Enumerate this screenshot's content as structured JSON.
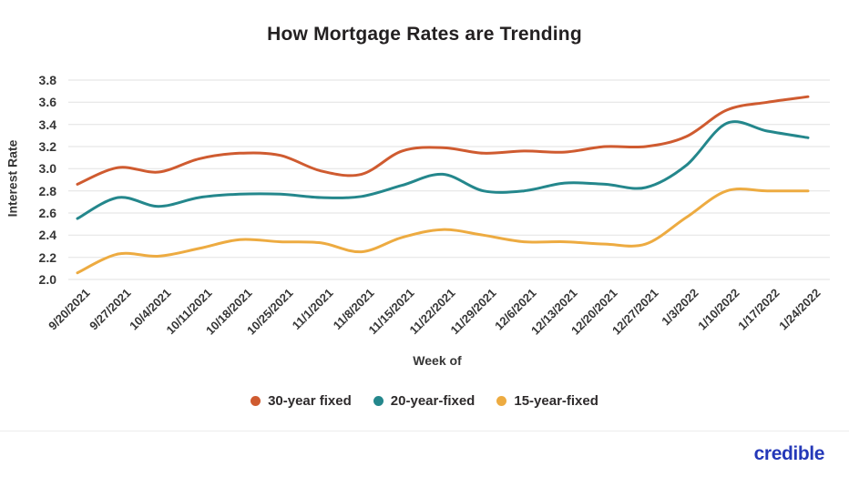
{
  "title": "How Mortgage Rates are Trending",
  "branding": {
    "logo_text": "credible",
    "logo_color": "#2438b8"
  },
  "chart_data": {
    "type": "line",
    "title": "How Mortgage Rates are Trending",
    "xlabel": "Week of",
    "ylabel": "Interest Rate",
    "ylim": [
      2.0,
      3.8
    ],
    "yticks": [
      3.8,
      3.6,
      3.4,
      3.2,
      3.0,
      2.8,
      2.6,
      2.4,
      2.2,
      2.0
    ],
    "grid": true,
    "gridline_color": "#e2e2e2",
    "legend_position": "bottom",
    "x_tick_rotation": -45,
    "categories": [
      "9/20/2021",
      "9/27/2021",
      "10/4/2021",
      "10/11/2021",
      "10/18/2021",
      "10/25/2021",
      "11/1/2021",
      "11/8/2021",
      "11/15/2021",
      "11/22/2021",
      "11/29/2021",
      "12/6/2021",
      "12/13/2021",
      "12/20/2021",
      "12/27/2021",
      "1/3/2022",
      "1/10/2022",
      "1/17/2022",
      "1/24/2022"
    ],
    "series": [
      {
        "name": "30-year fixed",
        "color": "#cf5b30",
        "values": [
          2.86,
          3.01,
          2.97,
          3.09,
          3.14,
          3.12,
          2.98,
          2.95,
          3.16,
          3.19,
          3.14,
          3.16,
          3.15,
          3.2,
          3.2,
          3.29,
          3.53,
          3.6,
          3.65
        ]
      },
      {
        "name": "20-year-fixed",
        "color": "#24878c",
        "values": [
          2.55,
          2.74,
          2.66,
          2.74,
          2.77,
          2.77,
          2.74,
          2.75,
          2.85,
          2.95,
          2.8,
          2.8,
          2.87,
          2.86,
          2.83,
          3.03,
          3.41,
          3.34,
          3.28
        ]
      },
      {
        "name": "15-year-fixed",
        "color": "#edab41",
        "values": [
          2.06,
          2.23,
          2.21,
          2.28,
          2.36,
          2.34,
          2.33,
          2.25,
          2.38,
          2.45,
          2.4,
          2.34,
          2.34,
          2.32,
          2.32,
          2.56,
          2.8,
          2.8,
          2.8
        ]
      }
    ]
  }
}
